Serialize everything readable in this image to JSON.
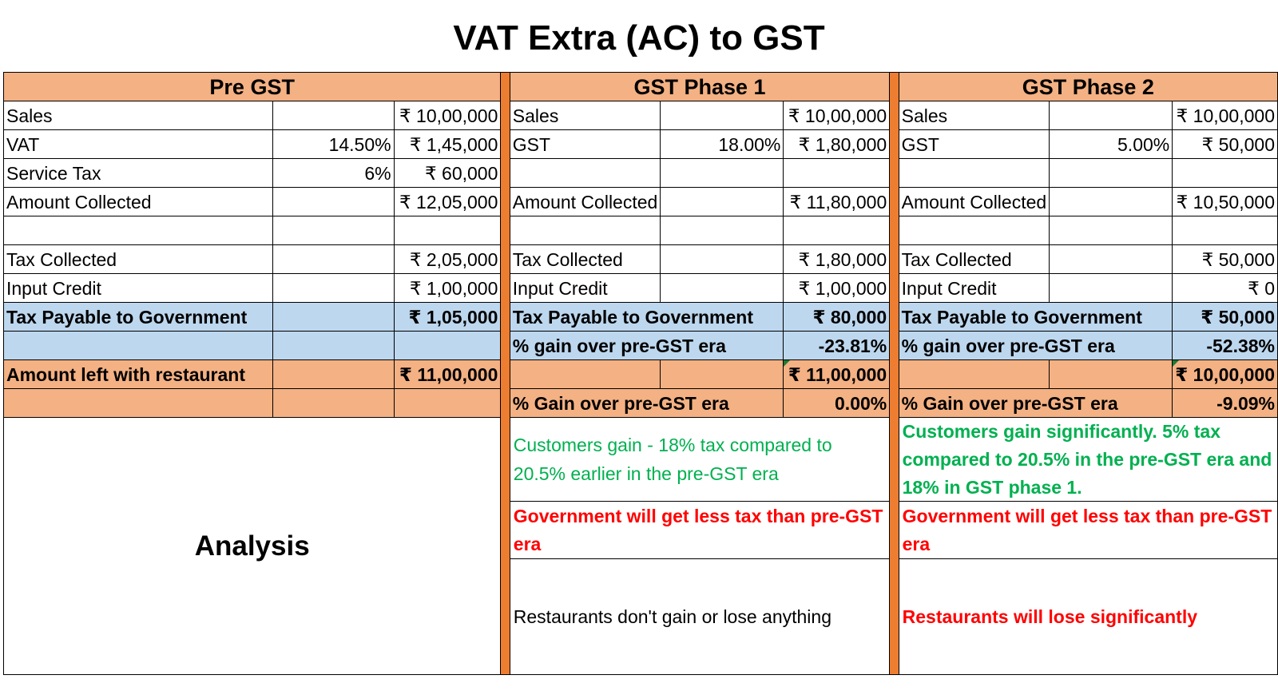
{
  "title": "VAT Extra (AC) to GST",
  "headers": {
    "pre": "Pre GST",
    "p1": "GST Phase 1",
    "p2": "GST Phase 2"
  },
  "pre": {
    "sales_label": "Sales",
    "sales": "₹ 10,00,000",
    "vat_label": "VAT",
    "vat_rate": "14.50%",
    "vat": "₹ 1,45,000",
    "st_label": "Service Tax",
    "st_rate": "6%",
    "st": "₹ 60,000",
    "amt_label": "Amount Collected",
    "amt": "₹ 12,05,000",
    "tax_label": "Tax Collected",
    "tax": "₹ 2,05,000",
    "ic_label": "Input Credit",
    "ic": "₹ 1,00,000",
    "pay_label": "Tax Payable to Government",
    "pay": "₹ 1,05,000",
    "left_label": "Amount left with restaurant",
    "left": "₹ 11,00,000"
  },
  "p1": {
    "sales_label": "Sales",
    "sales": "₹ 10,00,000",
    "gst_label": "GST",
    "gst_rate": "18.00%",
    "gst": "₹ 1,80,000",
    "amt_label": "Amount Collected",
    "amt": "₹ 11,80,000",
    "tax_label": "Tax Collected",
    "tax": "₹ 1,80,000",
    "ic_label": "Input Credit",
    "ic": "₹ 1,00,000",
    "pay_label": "Tax Payable to Government",
    "pay": "₹ 80,000",
    "gain_label": "% gain over pre-GST era",
    "gain": "-23.81%",
    "left": "₹ 11,00,000",
    "gain2_label": "% Gain over pre-GST era",
    "gain2": "0.00%"
  },
  "p2": {
    "sales_label": "Sales",
    "sales": "₹ 10,00,000",
    "gst_label": "GST",
    "gst_rate": "5.00%",
    "gst": "₹ 50,000",
    "amt_label": "Amount Collected",
    "amt": "₹ 10,50,000",
    "tax_label": "Tax Collected",
    "tax": "₹ 50,000",
    "ic_label": "Input Credit",
    "ic": "₹ 0",
    "pay_label": "Tax Payable to Government",
    "pay": "₹ 50,000",
    "gain_label": "% gain over pre-GST era",
    "gain": "-52.38%",
    "left": "₹ 10,00,000",
    "gain2_label": "% Gain over pre-GST era",
    "gain2": "-9.09%"
  },
  "analysis": {
    "label": "Analysis",
    "p1_customers": "Customers gain - 18% tax compared to 20.5% earlier in the pre-GST era",
    "p1_government": "Government will get less tax than pre-GST era",
    "p1_restaurants": "Restaurants don't gain or lose anything",
    "p2_customers": "Customers gain significantly. 5% tax compared to 20.5% in the pre-GST era and 18% in GST phase 1.",
    "p2_government": "Government will get less tax than pre-GST era",
    "p2_restaurants": "Restaurants will lose significantly"
  },
  "colors": {
    "header": "#F4B183",
    "separator": "#ED7D31",
    "payable": "#BDD7EE",
    "positive": "#00B050",
    "negative": "#FF0000"
  }
}
